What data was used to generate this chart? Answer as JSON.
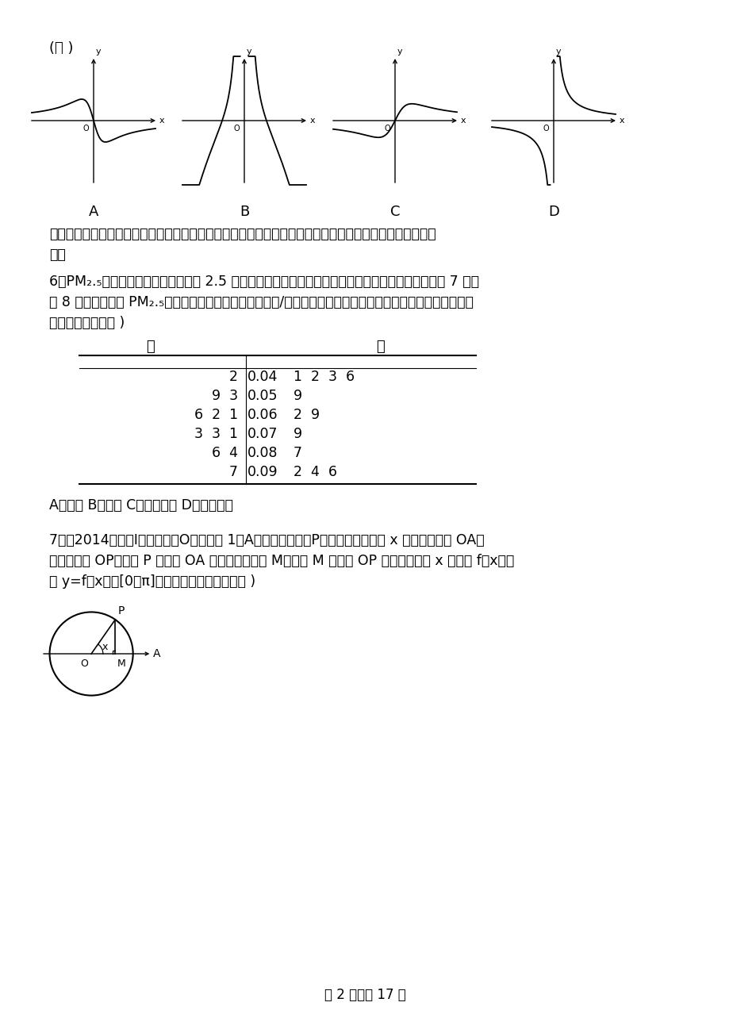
{
  "background_color": "#ffffff",
  "graph_labels": [
    "A",
    "B",
    "C",
    "D"
  ],
  "commentary_line1": "【命题意图】本题考查了利用函数的基本性质来判断图象，对识图能力及逻辑推理能力有较高要求，难度中",
  "commentary_line2": "等。",
  "q6_line1": "6．PM₂.₅是指大气中直径小于或等于 2.5 微米的颟粒物，也称为可入肺颟粒物，如图是据某地某日早 7 点至",
  "q6_line2": "晚 8 点甲、乙两个 PM₂.₅监测点统计的数据（单位：毫克/每立方米）列出的茌叶图，则甲、乙两地浓度的方差",
  "q6_line3": "较小的是（　　　 )",
  "table_jia_header": "甲",
  "table_yi_header": "乙",
  "table_stems": [
    "0.04",
    "0.05",
    "0.06",
    "0.07",
    "0.08",
    "0.09"
  ],
  "table_jia": [
    "2",
    "9  3",
    "6  2  1",
    "3  3  1",
    "6  4",
    "7"
  ],
  "table_yi": [
    "1  2  3  6",
    "9",
    "2  9",
    "9",
    "7",
    "2  4  6"
  ],
  "q6_answer": "A．甲　 B．乙　 C．甲乙相等 D．无法确定",
  "q7_line1": "7．（2014新课标Ⅰ）如图，圆O的半径为 1，A是圆上的定点，P是圆上的动点，角 x 的始边为射线 OA，",
  "q7_line2": "终边为射线 OP，过点 P 做直线 OA 的垂线，垂足为 M，将点 M 到直线 OP 的距离表示为 x 的函数 f（x），",
  "q7_line3": "则 y=f（x）在[0，π]的图象大致为（　　　　 )",
  "footer_text": "第 2 页，共 17 页",
  "open_paren": "(　 )"
}
